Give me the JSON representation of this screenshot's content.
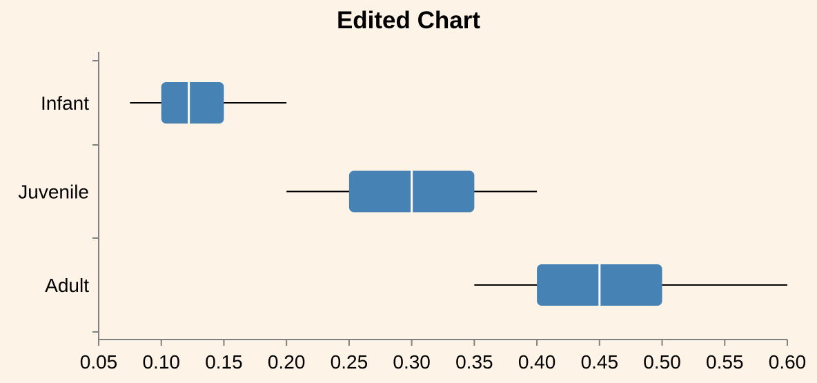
{
  "chart_data": {
    "type": "boxplot",
    "orientation": "horizontal",
    "title": "Edited Chart",
    "xlabel": "",
    "ylabel": "",
    "xlim": [
      0.05,
      0.6
    ],
    "x_ticks": [
      "0.05",
      "0.10",
      "0.15",
      "0.20",
      "0.25",
      "0.30",
      "0.35",
      "0.40",
      "0.45",
      "0.50",
      "0.55",
      "0.60"
    ],
    "grid": false,
    "box_color": "#4682b4",
    "median_color": "#ffffff",
    "whisker_color": "#000000",
    "categories": [
      "Infant",
      "Juvenile",
      "Adult"
    ],
    "boxes": [
      {
        "category": "Infant",
        "min": 0.075,
        "q1": 0.1,
        "median": 0.122,
        "q3": 0.15,
        "max": 0.2
      },
      {
        "category": "Juvenile",
        "min": 0.2,
        "q1": 0.25,
        "median": 0.3,
        "q3": 0.35,
        "max": 0.4
      },
      {
        "category": "Adult",
        "min": 0.35,
        "q1": 0.4,
        "median": 0.45,
        "q3": 0.5,
        "max": 0.6
      }
    ]
  },
  "colors": {
    "background": "#fdf3e6",
    "axis": "#808080"
  }
}
